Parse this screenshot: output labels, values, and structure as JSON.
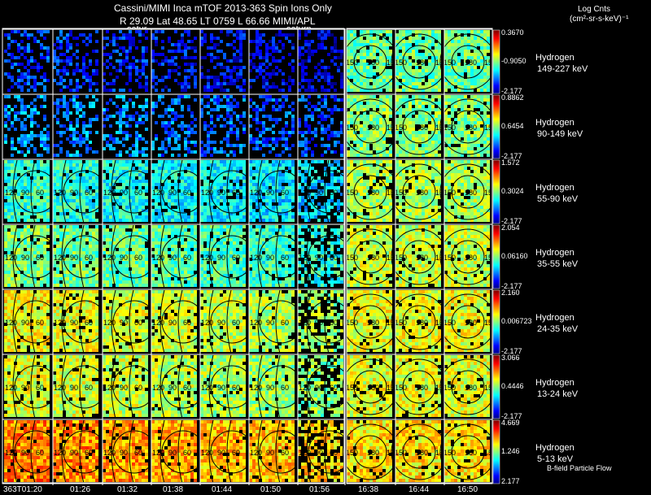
{
  "header": {
    "line1": "Cassini/MIMI Inca mTOF  2013-363   Spin   Ions Only",
    "line2": "R       29.09 Lat 48.65 LT 0759 L         66.66  MIMI/APL",
    "saturn_label_a": "satur",
    "saturn_label_b": "saturn"
  },
  "legend": {
    "title": "Log Cnts",
    "units": "(cm²-sr-s-keV)⁻¹",
    "bottom_note": "B-field Particle Flow"
  },
  "rows": [
    {
      "species": "Hydrogen",
      "energy": "149-227 keV",
      "cb_max": "0.3670",
      "cb_mid": "-0.9050",
      "cb_min": "-2.177",
      "level": 0.18
    },
    {
      "species": "Hydrogen",
      "energy": "90-149 keV",
      "cb_max": "0.8862",
      "cb_mid": "0.6454",
      "cb_min": "-2.177",
      "level": 0.28
    },
    {
      "species": "Hydrogen",
      "energy": "55-90 keV",
      "cb_max": "1.572",
      "cb_mid": "0.3024",
      "cb_min": "-2.177",
      "level": 0.42
    },
    {
      "species": "Hydrogen",
      "energy": "35-55 keV",
      "cb_max": "2.054",
      "cb_mid": "0.06160",
      "cb_min": "-2.177",
      "level": 0.5
    },
    {
      "species": "Hydrogen",
      "energy": "24-35 keV",
      "cb_max": "2.160",
      "cb_mid": "0.006723",
      "cb_min": "-2.177",
      "level": 0.62
    },
    {
      "species": "Hydrogen",
      "energy": "13-24 keV",
      "cb_max": "3.066",
      "cb_mid": "0.4446",
      "cb_min": "-2.177",
      "level": 0.6
    },
    {
      "species": "Hydrogen",
      "energy": "5-13 keV",
      "cb_max": "4.669",
      "cb_mid": "1.246",
      "cb_min": "2.177",
      "level": 0.75
    }
  ],
  "times": [
    "363T01:20",
    "01:26",
    "01:32",
    "01:38",
    "01:44",
    "01:50",
    "01:56",
    "16:38",
    "16:44",
    "16:50"
  ],
  "contour_labels": [
    "120",
    "90",
    "60",
    "150",
    "180"
  ]
}
